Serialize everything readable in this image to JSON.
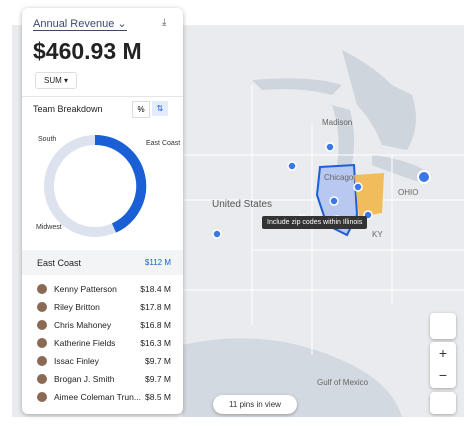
{
  "panel": {
    "title": "Annual Revenue",
    "total": "$460.93 M",
    "aggregate": "SUM",
    "breakdown_title": "Team Breakdown",
    "donut_labels": [
      "South",
      "East Coast",
      "Midwest"
    ],
    "group": {
      "name": "East Coast",
      "total": "$112 M"
    },
    "rows": [
      [
        "Kenny Patterson",
        "$18.4 M"
      ],
      [
        "Riley Britton",
        "$17.8 M"
      ],
      [
        "Chris Mahoney",
        "$16.8 M"
      ],
      [
        "Katherine Fields",
        "$16.3 M"
      ],
      [
        "Issac Finley",
        "$9.7 M"
      ],
      [
        "Brogan J. Smith",
        "$9.7 M"
      ],
      [
        "Aimee Coleman Trun...",
        "$8.5 M"
      ]
    ]
  },
  "map": {
    "labels": [
      "Madison",
      "Chicago",
      "United States",
      "OHIO",
      "KY",
      "Gulf of Mexico"
    ],
    "tooltip": "Include zip codes within Illinois",
    "pins_count": "11 pins in view"
  }
}
